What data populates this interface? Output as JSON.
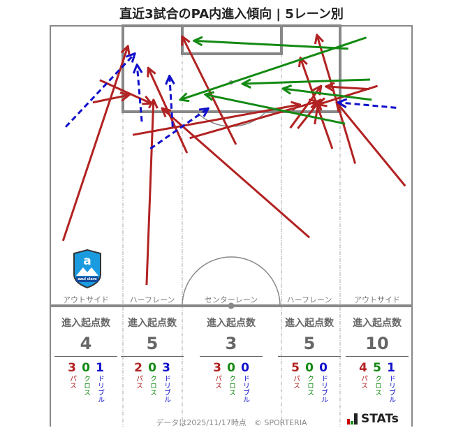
{
  "title": "直近3試合のPA内進入傾向 | 5レーン別",
  "lanes": [
    "アウトサイド",
    "ハーフレーン",
    "センターレーン",
    "ハーフレーン",
    "アウトサイド"
  ],
  "stats": [
    {
      "header": "進入起点数",
      "total": "4",
      "pass": "3",
      "cross": "0",
      "dribble": "1"
    },
    {
      "header": "進入起点数",
      "total": "5",
      "pass": "2",
      "cross": "0",
      "dribble": "3"
    },
    {
      "header": "進入起点数",
      "total": "3",
      "pass": "3",
      "cross": "0",
      "dribble": "0"
    },
    {
      "header": "進入起点数",
      "total": "5",
      "pass": "5",
      "cross": "0",
      "dribble": "0"
    },
    {
      "header": "進入起点数",
      "total": "10",
      "pass": "4",
      "cross": "5",
      "dribble": "1"
    }
  ],
  "type_labels": {
    "pass": "パス",
    "cross": "クロス",
    "dribble": "ドリブル"
  },
  "footer": "データは2025/11/17時点　© SPORTERIA",
  "brand": "STATs",
  "team_logo_text": "azul claro",
  "colors": {
    "pass": "#b22222",
    "cross": "#138a13",
    "dribble": "#1111cc",
    "pitch_line": "#888888"
  },
  "chart_data": {
    "type": "arrow-map",
    "units": "meters (x from left touchline, y from goal line)",
    "series": [
      {
        "name": "パス",
        "style": "solid",
        "arrows": [
          [
            [
              2.4,
              40.4
            ],
            [
              14.6,
              3.8
            ]
          ],
          [
            [
              8.0,
              14.4
            ],
            [
              14.8,
              13.0
            ]
          ],
          [
            [
              9.3,
              10.2
            ],
            [
              19.0,
              14.6
            ]
          ],
          [
            [
              18.1,
              48.7
            ],
            [
              19.4,
              13.9
            ]
          ],
          [
            [
              25.7,
              23.9
            ],
            [
              18.4,
              7.9
            ]
          ],
          [
            [
              48.7,
              39.8
            ],
            [
              21.0,
              15.5
            ]
          ],
          [
            [
              15.5,
              20.5
            ],
            [
              46.9,
              14.8
            ]
          ],
          [
            [
              26.2,
              21.1
            ],
            [
              50.3,
              14.2
            ]
          ],
          [
            [
              34.9,
              22.3
            ],
            [
              24.8,
              2.0
            ]
          ],
          [
            [
              45.1,
              19.2
            ],
            [
              50.9,
              11.3
            ]
          ],
          [
            [
              46.5,
              19.3
            ],
            [
              50.8,
              13.9
            ]
          ],
          [
            [
              49.7,
              18.5
            ],
            [
              50.4,
              14.2
            ]
          ],
          [
            [
              53.0,
              23.1
            ],
            [
              47.0,
              6.0
            ]
          ],
          [
            [
              57.3,
              25.9
            ],
            [
              50.1,
              1.7
            ]
          ],
          [
            [
              66.7,
              30.1
            ],
            [
              53.8,
              14.4
            ]
          ],
          [
            [
              61.5,
              11.3
            ],
            [
              50.3,
              14.8
            ]
          ],
          [
            [
              60.0,
              11.9
            ],
            [
              51.8,
              11.4
            ]
          ]
        ]
      },
      {
        "name": "クロス",
        "style": "solid",
        "arrows": [
          [
            [
              59.4,
              2.2
            ],
            [
              24.4,
              13.9
            ]
          ],
          [
            [
              56.0,
              4.3
            ],
            [
              27.0,
              2.8
            ]
          ],
          [
            [
              60.1,
              10.1
            ],
            [
              36.1,
              10.9
            ]
          ],
          [
            [
              60.4,
              13.9
            ],
            [
              43.7,
              11.8
            ]
          ],
          [
            [
              55.4,
              18.4
            ],
            [
              29.1,
              12.9
            ]
          ]
        ]
      },
      {
        "name": "ドリブル",
        "style": "dashed",
        "arrows": [
          [
            [
              2.9,
              19.0
            ],
            [
              15.9,
              5.2
            ]
          ],
          [
            [
              17.2,
              18.0
            ],
            [
              16.3,
              7.3
            ]
          ],
          [
            [
              23.0,
              19.0
            ],
            [
              22.4,
              9.4
            ]
          ],
          [
            [
              18.8,
              23.1
            ],
            [
              29.7,
              15.5
            ]
          ],
          [
            [
              65.0,
              15.4
            ],
            [
              54.1,
              14.4
            ]
          ]
        ]
      }
    ]
  }
}
